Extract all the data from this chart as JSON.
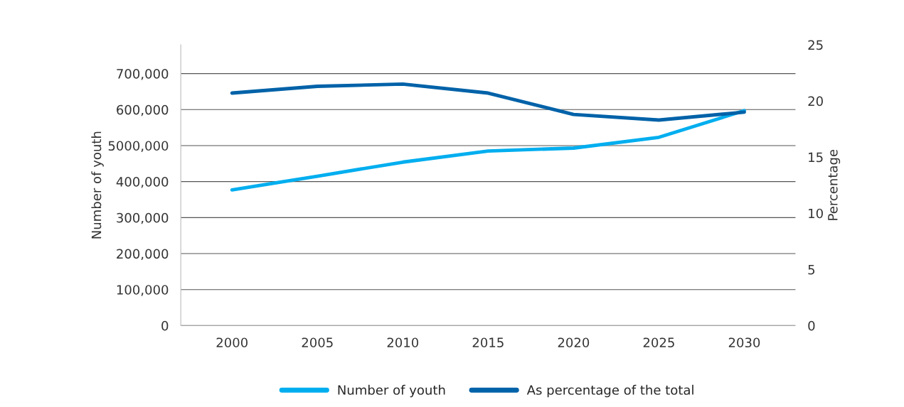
{
  "chart_data": {
    "type": "line",
    "categories": [
      "2000",
      "2005",
      "2010",
      "2015",
      "2020",
      "2025",
      "2030"
    ],
    "ylabel": "Number of youth",
    "y2label": "Percentage",
    "series": [
      {
        "name": "Number of youth",
        "color": "#00aeef",
        "values": [
          377000,
          415000,
          454000,
          485000,
          493000,
          523000,
          597000
        ]
      },
      {
        "name": "As percentage of the total",
        "color": "#0062a8",
        "axis": "y2",
        "values": [
          20.7,
          21.3,
          21.5,
          20.7,
          18.8,
          18.3,
          19.0
        ]
      }
    ],
    "ylim": [
      0,
      780000
    ],
    "yticks": [
      {
        "value": 0,
        "label": "0"
      },
      {
        "value": 100000,
        "label": "100,000"
      },
      {
        "value": 200000,
        "label": "200,000"
      },
      {
        "value": 300000,
        "label": "300,000"
      },
      {
        "value": 400000,
        "label": "400,000"
      },
      {
        "value": 500000,
        "label": "5000,000"
      },
      {
        "value": 600000,
        "label": "600,000"
      },
      {
        "value": 700000,
        "label": "700,000"
      }
    ],
    "y2lim": [
      0,
      25
    ],
    "y2ticks": [
      0,
      5,
      10,
      15,
      20,
      25
    ],
    "grid": "y",
    "legend": "bottom",
    "marker": "none",
    "line_style": "solid"
  }
}
